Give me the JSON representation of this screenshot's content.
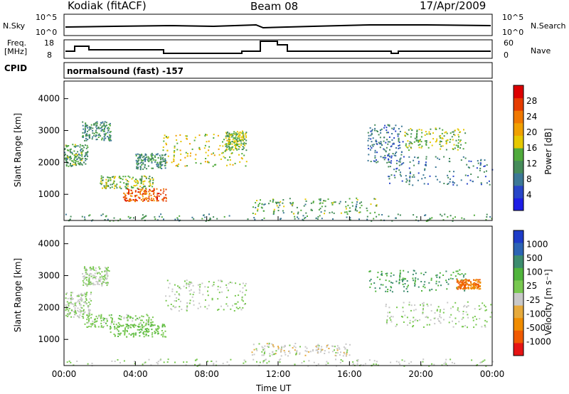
{
  "header": {
    "station": "Kodiak (fitACF)",
    "beam": "Beam 08",
    "date": "17/Apr/2009"
  },
  "top_panels": {
    "nsky_label": "N.Sky",
    "nsearch_label": "N.Search",
    "freq_label_1": "Freq.",
    "freq_label_2": "[MHz]",
    "nave_label": "Nave",
    "cpid_label": "CPID",
    "cpid_value": "normalsound (fast) -157",
    "noise_ticks": [
      "10^5",
      "10^0"
    ],
    "freq_ticks": [
      "18",
      "8"
    ],
    "nave_ticks": [
      "60",
      "0"
    ]
  },
  "colors": {
    "power": [
      "#1e1ee6",
      "#2846c8",
      "#3c7896",
      "#468c5a",
      "#50aa3c",
      "#e6c800",
      "#f0a000",
      "#f07800",
      "#e63c00",
      "#dc0000"
    ],
    "velocity": [
      "#1e3cc8",
      "#2c64b4",
      "#3c8c6e",
      "#50b43c",
      "#78c850",
      "#c8c8c8",
      "#e6aa3c",
      "#f08c00",
      "#f05a00",
      "#e61414"
    ]
  },
  "chart_data": [
    {
      "type": "heatmap",
      "title": "Power",
      "ylabel": "Slant Range [km]",
      "xlabel": "Time UT",
      "x_ticks": [
        "00:00",
        "04:00",
        "08:00",
        "12:00",
        "16:00",
        "20:00",
        "00:00"
      ],
      "y_ticks": [
        "1000",
        "2000",
        "3000",
        "4000"
      ],
      "x_range": [
        0,
        24
      ],
      "y_range": [
        180,
        4550
      ],
      "colorbar": {
        "label": "Power [dB]",
        "ticks": [
          "4",
          "8",
          "12",
          "16",
          "20",
          "24",
          "28"
        ],
        "range": [
          0,
          30
        ]
      },
      "regions": [
        {
          "t": [
            0,
            1.3
          ],
          "r": [
            1900,
            2600
          ],
          "v": 12
        },
        {
          "t": [
            1.0,
            2.6
          ],
          "r": [
            2700,
            3300
          ],
          "v": 10
        },
        {
          "t": [
            2.0,
            5.0
          ],
          "r": [
            1200,
            1600
          ],
          "v": 14
        },
        {
          "t": [
            3.3,
            5.7
          ],
          "r": [
            800,
            1200
          ],
          "v": 24
        },
        {
          "t": [
            5.5,
            10.2
          ],
          "r": [
            1900,
            2900
          ],
          "v": 16
        },
        {
          "t": [
            4.0,
            5.7
          ],
          "r": [
            1800,
            2300
          ],
          "v": 10
        },
        {
          "t": [
            9.0,
            10.2
          ],
          "r": [
            2400,
            3000
          ],
          "v": 14
        },
        {
          "t": [
            10.5,
            17.5
          ],
          "r": [
            400,
            900
          ],
          "v": 12
        },
        {
          "t": [
            0,
            24
          ],
          "r": [
            180,
            400
          ],
          "v": 10
        },
        {
          "t": [
            17.0,
            19.0
          ],
          "r": [
            2000,
            3200
          ],
          "v": 8
        },
        {
          "t": [
            19.0,
            22.5
          ],
          "r": [
            2400,
            3100
          ],
          "v": 14
        },
        {
          "t": [
            18.0,
            24.0
          ],
          "r": [
            1300,
            2200
          ],
          "v": 8
        }
      ]
    },
    {
      "type": "heatmap",
      "title": "Velocity",
      "ylabel": "Slant Range [km]",
      "xlabel": "Time UT",
      "x_ticks": [
        "00:00",
        "04:00",
        "08:00",
        "12:00",
        "16:00",
        "20:00",
        "00:00"
      ],
      "y_ticks": [
        "1000",
        "2000",
        "3000",
        "4000"
      ],
      "x_range": [
        0,
        24
      ],
      "y_range": [
        180,
        4550
      ],
      "colorbar": {
        "label": "Velocity [m s⁻¹]",
        "ticks": [
          "1000",
          "500",
          "100",
          "25",
          "-25",
          "-100",
          "-500",
          "-1000"
        ],
        "range": [
          -1000,
          1000
        ]
      },
      "regions": [
        {
          "t": [
            0,
            1.5
          ],
          "r": [
            1700,
            2500
          ],
          "v": 0
        },
        {
          "t": [
            1.0,
            2.5
          ],
          "r": [
            2700,
            3300
          ],
          "v": 0
        },
        {
          "t": [
            1.0,
            5.0
          ],
          "r": [
            1400,
            1800
          ],
          "v": 100
        },
        {
          "t": [
            2.5,
            5.7
          ],
          "r": [
            1100,
            1500
          ],
          "v": 150
        },
        {
          "t": [
            5.5,
            10.2
          ],
          "r": [
            1900,
            2900
          ],
          "v": 0
        },
        {
          "t": [
            10.5,
            16.0
          ],
          "r": [
            500,
            900
          ],
          "v": -100
        },
        {
          "t": [
            0,
            24
          ],
          "r": [
            180,
            400
          ],
          "v": 0
        },
        {
          "t": [
            17.0,
            22.5
          ],
          "r": [
            2500,
            3200
          ],
          "v": 400
        },
        {
          "t": [
            22.0,
            23.3
          ],
          "r": [
            2600,
            2900
          ],
          "v": -600
        },
        {
          "t": [
            18.0,
            24.0
          ],
          "r": [
            1400,
            2200
          ],
          "v": 0
        }
      ]
    }
  ],
  "axis": {
    "xlabel": "Time UT"
  }
}
